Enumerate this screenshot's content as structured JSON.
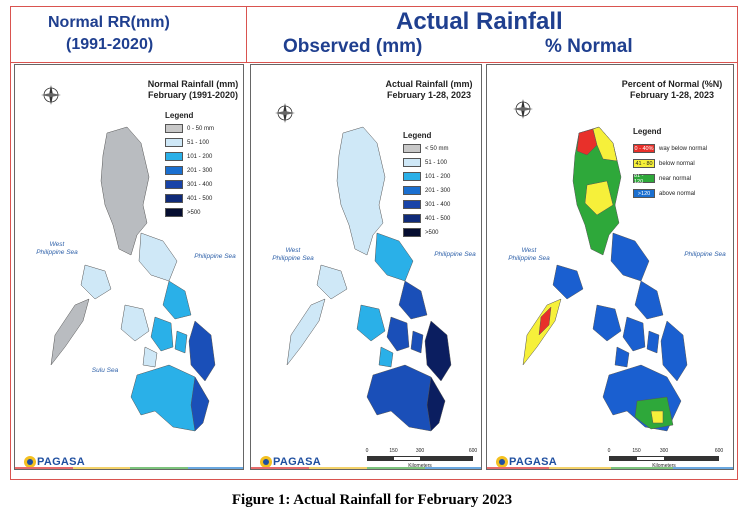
{
  "header": {
    "left_line1": "Normal RR(mm)",
    "left_line2": "(1991-2020)",
    "right_title": "Actual Rainfall",
    "right_sub_observed": "Observed (mm)",
    "right_sub_percent": "% Normal"
  },
  "panels": [
    {
      "title_line1": "Normal Rainfall (mm)",
      "title_line2": "February (1991-2020)",
      "legend_title": "Legend",
      "legend": [
        {
          "label": "0 - 50 mm",
          "color": "#c8c8c8"
        },
        {
          "label": "51 - 100",
          "color": "#cfe8f7"
        },
        {
          "label": "101 - 200",
          "color": "#2ab0e8"
        },
        {
          "label": "201 - 300",
          "color": "#1a6fd0"
        },
        {
          "label": "301 - 400",
          "color": "#1843a8"
        },
        {
          "label": "401 - 500",
          "color": "#0f2a78"
        },
        {
          "label": ">500",
          "color": "#050d30"
        }
      ]
    },
    {
      "title_line1": "Actual Rainfall (mm)",
      "title_line2": "February 1-28, 2023",
      "legend_title": "Legend",
      "legend": [
        {
          "label": "< 50 mm",
          "color": "#c8c8c8"
        },
        {
          "label": "51 - 100",
          "color": "#cfe8f7"
        },
        {
          "label": "101 - 200",
          "color": "#2ab0e8"
        },
        {
          "label": "201 - 300",
          "color": "#1a6fd0"
        },
        {
          "label": "301 - 400",
          "color": "#1843a8"
        },
        {
          "label": "401 - 500",
          "color": "#0f2a78"
        },
        {
          "label": ">500",
          "color": "#050d30"
        }
      ]
    },
    {
      "title_line1": "Percent of Normal (%N)",
      "title_line2": "February 1-28, 2023",
      "legend_title": "Legend",
      "legend": [
        {
          "label": "way below normal",
          "swatch_text": "0 - 40%",
          "color": "#e8302a"
        },
        {
          "label": "below normal",
          "swatch_text": "41 - 80",
          "color": "#f6f03a"
        },
        {
          "label": "near normal",
          "swatch_text": "81 - 120",
          "color": "#2ea83a"
        },
        {
          "label": "above normal",
          "swatch_text": ">120",
          "color": "#1a6fd0"
        }
      ]
    }
  ],
  "seas": {
    "west_line1": "West",
    "west_line2": "Philippine Sea",
    "philippine_sea": "Philippine Sea",
    "sulu_sea": "Sulu Sea"
  },
  "scale": {
    "ticks": [
      "0",
      "150",
      "300",
      "600"
    ],
    "unit": "Kilometers"
  },
  "logo": {
    "text": "PAGASA"
  },
  "caption": "Figure 1: Actual Rainfall for February 2023",
  "map_colors": {
    "normal_land": "#b9bcc0",
    "normal_mid": "#cfe8f7",
    "normal_high": "#2ab0e8",
    "normal_dark": "#1a4fb8",
    "actual_land": "#cfe8f7",
    "actual_mid": "#2ab0e8",
    "actual_dark": "#1a4fb8",
    "actual_darkest": "#0b1e60",
    "pct_above": "#1a5fd0",
    "pct_near": "#2ea83a",
    "pct_below": "#f6f03a",
    "pct_waybelow": "#e8302a"
  }
}
